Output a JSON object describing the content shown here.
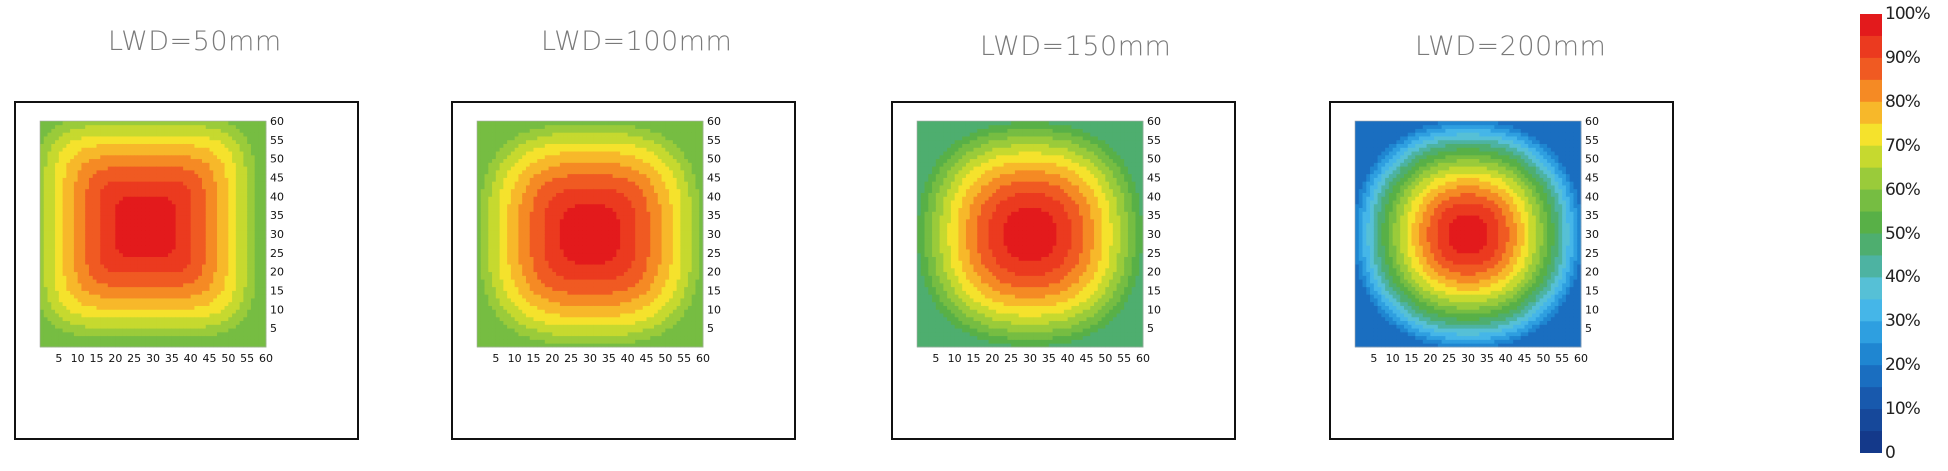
{
  "chart_data": [
    {
      "type": "heatmap",
      "title": "LWD=50mm",
      "subtitle": "",
      "x_ticks": [
        5,
        10,
        15,
        20,
        25,
        30,
        35,
        40,
        45,
        50,
        55,
        60
      ],
      "y_ticks": [
        5,
        10,
        15,
        20,
        25,
        30,
        35,
        40,
        45,
        50,
        55,
        60
      ],
      "xlim": [
        0,
        60
      ],
      "ylim": [
        0,
        60
      ],
      "center": [
        28,
        32
      ],
      "peak_percent": 100,
      "min_percent": 55,
      "shape_exponent": 5
    },
    {
      "type": "heatmap",
      "title": "LWD=100mm",
      "subtitle": "",
      "x_ticks": [
        5,
        10,
        15,
        20,
        25,
        30,
        35,
        40,
        45,
        50,
        55,
        60
      ],
      "y_ticks": [
        5,
        10,
        15,
        20,
        25,
        30,
        35,
        40,
        45,
        50,
        55,
        60
      ],
      "xlim": [
        0,
        60
      ],
      "ylim": [
        0,
        60
      ],
      "center": [
        30,
        30
      ],
      "peak_percent": 100,
      "min_percent": 55,
      "shape_exponent": 3
    },
    {
      "type": "heatmap",
      "title": "LWD=150mm",
      "subtitle": "",
      "x_ticks": [
        5,
        10,
        15,
        20,
        25,
        30,
        35,
        40,
        45,
        50,
        55,
        60
      ],
      "y_ticks": [
        5,
        10,
        15,
        20,
        25,
        30,
        35,
        40,
        45,
        50,
        55,
        60
      ],
      "xlim": [
        0,
        60
      ],
      "ylim": [
        0,
        60
      ],
      "center": [
        30,
        30
      ],
      "peak_percent": 100,
      "min_percent": 45,
      "shape_exponent": 2.4
    },
    {
      "type": "heatmap",
      "title": "LWD=200mm",
      "subtitle": "",
      "x_ticks": [
        5,
        10,
        15,
        20,
        25,
        30,
        35,
        40,
        45,
        50,
        55,
        60
      ],
      "y_ticks": [
        5,
        10,
        15,
        20,
        25,
        30,
        35,
        40,
        45,
        50,
        55,
        60
      ],
      "xlim": [
        0,
        60
      ],
      "ylim": [
        0,
        60
      ],
      "center": [
        30,
        30
      ],
      "peak_percent": 100,
      "min_percent": 15,
      "shape_exponent": 2.2
    }
  ],
  "colorbar": {
    "labels": [
      "100%",
      "90%",
      "80%",
      "70%",
      "60%",
      "50%",
      "40%",
      "30%",
      "20%",
      "10%",
      "0"
    ],
    "levels": [
      {
        "from": 95,
        "color": "#e31a1c"
      },
      {
        "from": 90,
        "color": "#eb3a1f"
      },
      {
        "from": 85,
        "color": "#f05a22"
      },
      {
        "from": 80,
        "color": "#f58a24"
      },
      {
        "from": 75,
        "color": "#f7b82a"
      },
      {
        "from": 70,
        "color": "#f5e22c"
      },
      {
        "from": 65,
        "color": "#c6d92f"
      },
      {
        "from": 60,
        "color": "#9acb3a"
      },
      {
        "from": 55,
        "color": "#76bd42"
      },
      {
        "from": 50,
        "color": "#58b047"
      },
      {
        "from": 45,
        "color": "#4eae6f"
      },
      {
        "from": 40,
        "color": "#4db3a2"
      },
      {
        "from": 35,
        "color": "#56c0d6"
      },
      {
        "from": 30,
        "color": "#45b6e8"
      },
      {
        "from": 25,
        "color": "#2e9fe0"
      },
      {
        "from": 20,
        "color": "#1f86d1"
      },
      {
        "from": 15,
        "color": "#1a6ec0"
      },
      {
        "from": 10,
        "color": "#1859ad"
      },
      {
        "from": 5,
        "color": "#16489a"
      },
      {
        "from": 0,
        "color": "#14398a"
      }
    ]
  }
}
